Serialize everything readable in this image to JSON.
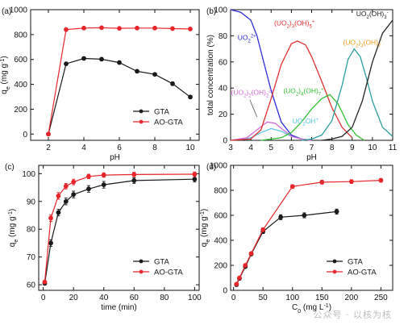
{
  "watermark": "公众号 · 以核为核",
  "chart_data": [
    {
      "panel": "(a)",
      "type": "line",
      "xlabel": "pH",
      "ylabel": "q_e (mg g^-1)",
      "xlim": [
        1,
        10.5
      ],
      "ylim": [
        -50,
        1000
      ],
      "xticks": [
        2,
        4,
        6,
        8,
        10
      ],
      "yticks": [
        0,
        200,
        400,
        600,
        800,
        1000
      ],
      "legend_position": "bottom-right",
      "series": [
        {
          "name": "GTA",
          "color": "#1a1a1a",
          "marker": "circle",
          "x": [
            2,
            3,
            4,
            5,
            6,
            7,
            8,
            9,
            10
          ],
          "y": [
            0,
            565,
            608,
            602,
            575,
            505,
            480,
            405,
            298
          ],
          "err": [
            0,
            12,
            12,
            12,
            12,
            12,
            12,
            14,
            12
          ]
        },
        {
          "name": "AO-GTA",
          "color": "#e8262b",
          "marker": "circle",
          "x": [
            2,
            3,
            4,
            5,
            6,
            7,
            8,
            9,
            10
          ],
          "y": [
            0,
            840,
            852,
            855,
            850,
            852,
            852,
            848,
            845
          ],
          "err": [
            0,
            8,
            8,
            8,
            8,
            8,
            8,
            8,
            8
          ]
        }
      ]
    },
    {
      "panel": "(b)",
      "type": "line",
      "xlabel": "pH",
      "ylabel": "total concentration (%)",
      "xlim": [
        3,
        11
      ],
      "ylim": [
        0,
        100
      ],
      "xticks": [
        3,
        4,
        5,
        6,
        7,
        8,
        9,
        10,
        11
      ],
      "yticks": [
        0,
        20,
        40,
        60,
        80,
        100
      ],
      "series": [
        {
          "name": "UO2 2+",
          "color": "#2b2bd6",
          "x": [
            3,
            3.5,
            4,
            4.3,
            4.6,
            5,
            5.5,
            6,
            6.5,
            7
          ],
          "y": [
            100,
            98,
            92,
            80,
            62,
            38,
            14,
            4,
            1,
            0
          ]
        },
        {
          "name": "UO2 OH +",
          "color": "#5bc8e6",
          "x": [
            3,
            4,
            4.5,
            5,
            5.5,
            6,
            6.5,
            7
          ],
          "y": [
            0,
            2,
            6,
            9,
            7,
            3,
            1,
            0
          ]
        },
        {
          "name": "(UO2)2(OH)2 2+",
          "color": "#d26bd6",
          "x": [
            3,
            3.8,
            4.3,
            4.8,
            5.2,
            5.6,
            6,
            6.5,
            7
          ],
          "y": [
            0,
            2,
            8,
            14,
            13,
            8,
            3,
            1,
            0
          ]
        },
        {
          "name": "(UO2)3(OH)5 +",
          "color": "#e03030",
          "x": [
            3,
            4,
            4.5,
            5,
            5.5,
            6,
            6.3,
            6.7,
            7,
            7.5,
            8,
            8.5,
            9
          ],
          "y": [
            0,
            1,
            8,
            32,
            58,
            74,
            76,
            73,
            64,
            45,
            25,
            10,
            2
          ]
        },
        {
          "name": "(UO2)4(OH)7 +",
          "color": "#33c233",
          "x": [
            4.5,
            5.5,
            6,
            6.5,
            7,
            7.5,
            7.9,
            8.3,
            8.8,
            9.2,
            9.6
          ],
          "y": [
            0,
            2,
            6,
            14,
            24,
            32,
            35,
            28,
            12,
            4,
            0
          ]
        },
        {
          "name": "(UO2)3(OH)7 -",
          "color": "#2a9d9d",
          "x": [
            6.5,
            7,
            7.5,
            8,
            8.5,
            8.8,
            9.1,
            9.4,
            9.7,
            10,
            10.5,
            11
          ],
          "y": [
            0,
            1,
            4,
            15,
            42,
            62,
            70,
            64,
            48,
            30,
            10,
            3
          ]
        },
        {
          "name": "UO2(OH)3 -",
          "color": "#222222",
          "x": [
            7.5,
            8,
            8.5,
            9,
            9.5,
            10,
            10.5,
            11
          ],
          "y": [
            0,
            1,
            3,
            10,
            30,
            60,
            82,
            92
          ]
        }
      ],
      "annotations": [
        {
          "text": "UO",
          "sub": "2",
          "sup": "2+",
          "color": "#2b2bd6",
          "x": 3.35,
          "y": 77
        },
        {
          "text": "(UO",
          "sub": "2",
          "mid": ")",
          "sub2": "3",
          "mid2": "(OH)",
          "sub3": "5",
          "sup": "+",
          "color": "#e03030",
          "x": 5.15,
          "y": 88
        },
        {
          "text": "UO",
          "sub": "2",
          "mid": "(OH)",
          "sub2": "3",
          "sup": "-",
          "color": "#222222",
          "x": 9.2,
          "y": 95
        },
        {
          "text": "(UO",
          "sub": "2",
          "mid": ")",
          "sub2": "3",
          "mid2": "(OH)",
          "sub3": "7",
          "sup": "-",
          "color": "#e89b1a",
          "x": 8.55,
          "y": 73
        },
        {
          "text": "(UO",
          "sub": "2",
          "mid": ")",
          "sub2": "2",
          "mid2": "(OH)",
          "sub3": "2",
          "sup": "2+",
          "color": "#d26bd6",
          "x": 3.02,
          "y": 35
        },
        {
          "text": "(UO",
          "sub": "2",
          "mid": ")",
          "sub2": "4",
          "mid2": "(OH)",
          "sub3": "7",
          "sup": "+",
          "color": "#33c233",
          "x": 5.6,
          "y": 36
        },
        {
          "text": "UO",
          "sub": "2",
          "mid": "OH",
          "sup": "+",
          "color": "#5bc8e6",
          "x": 6.05,
          "y": 13
        }
      ]
    },
    {
      "panel": "(c)",
      "type": "line",
      "xlabel": "time (min)",
      "ylabel": "q_e (mg g^-1)",
      "xlim": [
        -3,
        103
      ],
      "ylim": [
        58,
        103
      ],
      "xticks": [
        0,
        20,
        40,
        60,
        80,
        100
      ],
      "yticks": [
        60,
        70,
        80,
        90,
        100
      ],
      "legend_position": "bottom-right",
      "series": [
        {
          "name": "GTA",
          "color": "#1a1a1a",
          "marker": "circle",
          "x": [
            1,
            5,
            10,
            15,
            20,
            30,
            40,
            60,
            100
          ],
          "y": [
            60.5,
            75,
            86,
            90,
            92.5,
            94.5,
            96,
            97.5,
            98
          ],
          "err": [
            0.5,
            1.2,
            1.2,
            1.2,
            1.2,
            1.2,
            1.2,
            1.0,
            1.0
          ]
        },
        {
          "name": "AO-GTA",
          "color": "#e8262b",
          "marker": "circle",
          "x": [
            1,
            5,
            10,
            15,
            20,
            30,
            40,
            60,
            100
          ],
          "y": [
            61,
            84,
            92,
            95.5,
            97,
            99,
            99.5,
            99.7,
            99.8
          ],
          "err": [
            0.5,
            1.2,
            1.2,
            1.0,
            1.0,
            0.8,
            0.8,
            0.8,
            0.8
          ]
        }
      ]
    },
    {
      "panel": "(d)",
      "type": "line",
      "xlabel": "C_0 (mg L^-1)",
      "ylabel": "q_e (mg g^-1)",
      "xlim": [
        -5,
        270
      ],
      "ylim": [
        0,
        1000
      ],
      "xticks": [
        0,
        50,
        100,
        150,
        200,
        250
      ],
      "yticks": [
        0,
        200,
        400,
        600,
        800,
        1000
      ],
      "legend_position": "bottom-right",
      "series": [
        {
          "name": "GTA",
          "color": "#1a1a1a",
          "marker": "circle",
          "x": [
            5,
            10,
            20,
            30,
            50,
            80,
            120,
            175
          ],
          "y": [
            45,
            95,
            190,
            290,
            470,
            585,
            600,
            630
          ],
          "err": [
            5,
            8,
            8,
            10,
            15,
            20,
            20,
            20
          ]
        },
        {
          "name": "AO-GTA",
          "color": "#e8262b",
          "marker": "circle",
          "x": [
            5,
            10,
            20,
            30,
            50,
            100,
            150,
            200,
            250
          ],
          "y": [
            50,
            100,
            200,
            295,
            485,
            830,
            865,
            870,
            880
          ],
          "err": [
            5,
            8,
            8,
            10,
            15,
            15,
            15,
            15,
            15
          ]
        }
      ]
    }
  ]
}
